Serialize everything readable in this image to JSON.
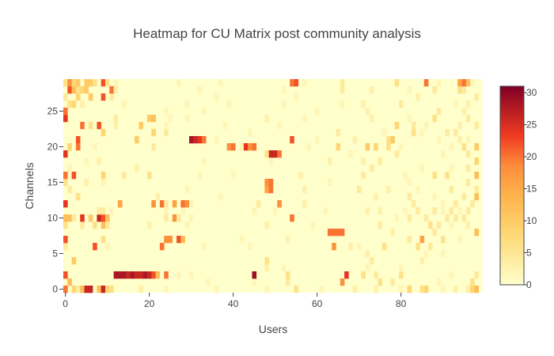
{
  "chart_data": {
    "type": "heatmap",
    "title": "Heatmap for CU Matrix post community analysis",
    "xlabel": "Users",
    "ylabel": "Channels",
    "x_range": [
      0,
      99
    ],
    "y_range": [
      0,
      29
    ],
    "x_ticks": [
      0,
      20,
      40,
      60,
      80
    ],
    "y_ticks": [
      0,
      5,
      10,
      15,
      20,
      25
    ],
    "colorscale": [
      [
        0,
        "#ffffcc"
      ],
      [
        0.25,
        "#fed976"
      ],
      [
        0.45,
        "#feb24c"
      ],
      [
        0.6,
        "#fd8d3c"
      ],
      [
        0.75,
        "#f03b20"
      ],
      [
        1,
        "#800026"
      ]
    ],
    "zmin": 0,
    "zmax": 31,
    "colorbar_ticks": [
      0,
      5,
      10,
      15,
      20,
      25,
      30
    ],
    "background_value": 0,
    "cells": [
      [
        0,
        0,
        20
      ],
      [
        2,
        0,
        8
      ],
      [
        3,
        0,
        4
      ],
      [
        4,
        0,
        12
      ],
      [
        5,
        0,
        26
      ],
      [
        6,
        0,
        26
      ],
      [
        8,
        0,
        12
      ],
      [
        9,
        0,
        26
      ],
      [
        10,
        0,
        8
      ],
      [
        11,
        0,
        6
      ],
      [
        18,
        0,
        3
      ],
      [
        24,
        0,
        2
      ],
      [
        36,
        0,
        2
      ],
      [
        48,
        0,
        2
      ],
      [
        55,
        0,
        6
      ],
      [
        61,
        0,
        2
      ],
      [
        69,
        0,
        3
      ],
      [
        74,
        0,
        3
      ],
      [
        80,
        0,
        2
      ],
      [
        82,
        0,
        8
      ],
      [
        85,
        0,
        6
      ],
      [
        86,
        0,
        8
      ],
      [
        90,
        0,
        2
      ],
      [
        93,
        0,
        3
      ],
      [
        96,
        0,
        3
      ],
      [
        97,
        0,
        8
      ],
      [
        98,
        0,
        12
      ],
      [
        1,
        1,
        12
      ],
      [
        34,
        1,
        2
      ],
      [
        45,
        1,
        2
      ],
      [
        53,
        1,
        4
      ],
      [
        66,
        1,
        18
      ],
      [
        75,
        1,
        6
      ],
      [
        78,
        1,
        4
      ],
      [
        89,
        1,
        2
      ],
      [
        97,
        1,
        6
      ],
      [
        0,
        2,
        22
      ],
      [
        12,
        2,
        28
      ],
      [
        13,
        2,
        28
      ],
      [
        14,
        2,
        28
      ],
      [
        15,
        2,
        26
      ],
      [
        16,
        2,
        28
      ],
      [
        17,
        2,
        26
      ],
      [
        18,
        2,
        26
      ],
      [
        19,
        2,
        28
      ],
      [
        20,
        2,
        26
      ],
      [
        21,
        2,
        22
      ],
      [
        22,
        2,
        12
      ],
      [
        24,
        2,
        20
      ],
      [
        27,
        2,
        2
      ],
      [
        30,
        2,
        2
      ],
      [
        45,
        2,
        29
      ],
      [
        53,
        2,
        6
      ],
      [
        67,
        2,
        24
      ],
      [
        71,
        2,
        6
      ],
      [
        74,
        2,
        4
      ],
      [
        80,
        2,
        6
      ],
      [
        92,
        2,
        2
      ],
      [
        98,
        2,
        4
      ],
      [
        48,
        3,
        3
      ],
      [
        52,
        3,
        2
      ],
      [
        72,
        3,
        2
      ],
      [
        80,
        3,
        2
      ],
      [
        2,
        4,
        10
      ],
      [
        48,
        4,
        6
      ],
      [
        73,
        4,
        4
      ],
      [
        85,
        4,
        3
      ],
      [
        72,
        5,
        3
      ],
      [
        86,
        5,
        2
      ],
      [
        90,
        5,
        2
      ],
      [
        0,
        6,
        4
      ],
      [
        7,
        6,
        22
      ],
      [
        10,
        6,
        2
      ],
      [
        23,
        6,
        20
      ],
      [
        33,
        6,
        2
      ],
      [
        44,
        6,
        2
      ],
      [
        64,
        6,
        18
      ],
      [
        68,
        6,
        3
      ],
      [
        70,
        6,
        2
      ],
      [
        76,
        6,
        6
      ],
      [
        84,
        6,
        6
      ],
      [
        87,
        6,
        4
      ],
      [
        0,
        7,
        22
      ],
      [
        9,
        7,
        6
      ],
      [
        24,
        7,
        18
      ],
      [
        25,
        7,
        18
      ],
      [
        27,
        7,
        22
      ],
      [
        28,
        7,
        12
      ],
      [
        42,
        7,
        2
      ],
      [
        53,
        7,
        3
      ],
      [
        82,
        7,
        4
      ],
      [
        85,
        7,
        16
      ],
      [
        90,
        7,
        6
      ],
      [
        94,
        7,
        2
      ],
      [
        63,
        8,
        20
      ],
      [
        64,
        8,
        20
      ],
      [
        65,
        8,
        20
      ],
      [
        66,
        8,
        20
      ],
      [
        78,
        8,
        3
      ],
      [
        88,
        8,
        4
      ],
      [
        98,
        8,
        12
      ],
      [
        0,
        9,
        6
      ],
      [
        4,
        9,
        4
      ],
      [
        7,
        9,
        6
      ],
      [
        9,
        9,
        12
      ],
      [
        10,
        9,
        4
      ],
      [
        20,
        9,
        3
      ],
      [
        29,
        9,
        2
      ],
      [
        48,
        9,
        3
      ],
      [
        59,
        9,
        2
      ],
      [
        75,
        9,
        4
      ],
      [
        87,
        9,
        6
      ],
      [
        89,
        9,
        4
      ],
      [
        92,
        9,
        2
      ],
      [
        96,
        9,
        3
      ],
      [
        0,
        10,
        12
      ],
      [
        1,
        10,
        12
      ],
      [
        2,
        10,
        4
      ],
      [
        4,
        10,
        24
      ],
      [
        6,
        10,
        10
      ],
      [
        8,
        10,
        26
      ],
      [
        9,
        10,
        22
      ],
      [
        10,
        10,
        12
      ],
      [
        24,
        10,
        4
      ],
      [
        26,
        10,
        18
      ],
      [
        27,
        10,
        4
      ],
      [
        30,
        10,
        2
      ],
      [
        54,
        10,
        20
      ],
      [
        79,
        10,
        2
      ],
      [
        82,
        10,
        4
      ],
      [
        86,
        10,
        4
      ],
      [
        91,
        10,
        4
      ],
      [
        93,
        10,
        4
      ],
      [
        95,
        10,
        4
      ],
      [
        8,
        11,
        4
      ],
      [
        9,
        11,
        4
      ],
      [
        11,
        11,
        2
      ],
      [
        24,
        11,
        2
      ],
      [
        28,
        11,
        2
      ],
      [
        45,
        11,
        2
      ],
      [
        50,
        11,
        2
      ],
      [
        62,
        11,
        2
      ],
      [
        72,
        11,
        3
      ],
      [
        75,
        11,
        3
      ],
      [
        81,
        11,
        2
      ],
      [
        84,
        11,
        4
      ],
      [
        88,
        11,
        4
      ],
      [
        90,
        11,
        2
      ],
      [
        92,
        11,
        4
      ],
      [
        94,
        11,
        2
      ],
      [
        96,
        11,
        4
      ],
      [
        0,
        12,
        24
      ],
      [
        13,
        12,
        16
      ],
      [
        21,
        12,
        18
      ],
      [
        23,
        12,
        20
      ],
      [
        24,
        12,
        4
      ],
      [
        26,
        12,
        16
      ],
      [
        28,
        12,
        20
      ],
      [
        29,
        12,
        18
      ],
      [
        30,
        12,
        2
      ],
      [
        46,
        12,
        4
      ],
      [
        51,
        12,
        18
      ],
      [
        57,
        12,
        3
      ],
      [
        83,
        12,
        4
      ],
      [
        90,
        12,
        2
      ],
      [
        93,
        12,
        4
      ],
      [
        97,
        12,
        4
      ],
      [
        3,
        13,
        6
      ],
      [
        22,
        13,
        3
      ],
      [
        37,
        13,
        2
      ],
      [
        74,
        13,
        3
      ],
      [
        82,
        13,
        4
      ],
      [
        88,
        13,
        2
      ],
      [
        95,
        13,
        4
      ],
      [
        98,
        13,
        12
      ],
      [
        1,
        14,
        4
      ],
      [
        29,
        14,
        2
      ],
      [
        48,
        14,
        16
      ],
      [
        49,
        14,
        20
      ],
      [
        57,
        14,
        3
      ],
      [
        70,
        14,
        4
      ],
      [
        77,
        14,
        3
      ],
      [
        84,
        14,
        2
      ],
      [
        92,
        14,
        4
      ],
      [
        98,
        14,
        4
      ],
      [
        0,
        15,
        6
      ],
      [
        5,
        15,
        3
      ],
      [
        9,
        15,
        2
      ],
      [
        48,
        15,
        18
      ],
      [
        49,
        15,
        20
      ],
      [
        63,
        15,
        2
      ],
      [
        82,
        15,
        2
      ],
      [
        96,
        15,
        4
      ],
      [
        0,
        16,
        20
      ],
      [
        2,
        16,
        22
      ],
      [
        9,
        16,
        8
      ],
      [
        14,
        16,
        4
      ],
      [
        20,
        16,
        6
      ],
      [
        32,
        16,
        2
      ],
      [
        40,
        16,
        2
      ],
      [
        56,
        16,
        3
      ],
      [
        71,
        16,
        4
      ],
      [
        81,
        16,
        2
      ],
      [
        88,
        16,
        6
      ],
      [
        91,
        16,
        6
      ],
      [
        98,
        16,
        12
      ],
      [
        1,
        17,
        2
      ],
      [
        17,
        17,
        3
      ],
      [
        73,
        17,
        4
      ],
      [
        85,
        17,
        2
      ],
      [
        92,
        17,
        2
      ],
      [
        96,
        17,
        4
      ],
      [
        5,
        18,
        2
      ],
      [
        8,
        18,
        3
      ],
      [
        33,
        18,
        2
      ],
      [
        49,
        18,
        2
      ],
      [
        63,
        18,
        3
      ],
      [
        71,
        18,
        3
      ],
      [
        75,
        18,
        4
      ],
      [
        98,
        18,
        8
      ],
      [
        0,
        19,
        24
      ],
      [
        48,
        19,
        6
      ],
      [
        49,
        19,
        26
      ],
      [
        50,
        19,
        26
      ],
      [
        51,
        19,
        20
      ],
      [
        68,
        19,
        2
      ],
      [
        79,
        19,
        4
      ],
      [
        90,
        19,
        2
      ],
      [
        96,
        19,
        4
      ],
      [
        1,
        20,
        8
      ],
      [
        3,
        20,
        20
      ],
      [
        7,
        20,
        2
      ],
      [
        21,
        20,
        4
      ],
      [
        39,
        20,
        18
      ],
      [
        40,
        20,
        20
      ],
      [
        42,
        20,
        2
      ],
      [
        43,
        20,
        24
      ],
      [
        44,
        20,
        18
      ],
      [
        45,
        20,
        20
      ],
      [
        58,
        20,
        2
      ],
      [
        65,
        20,
        8
      ],
      [
        72,
        20,
        10
      ],
      [
        74,
        20,
        8
      ],
      [
        77,
        20,
        6
      ],
      [
        80,
        20,
        2
      ],
      [
        92,
        20,
        2
      ],
      [
        95,
        20,
        6
      ],
      [
        98,
        20,
        10
      ],
      [
        3,
        21,
        22
      ],
      [
        17,
        21,
        10
      ],
      [
        30,
        21,
        28
      ],
      [
        31,
        21,
        26
      ],
      [
        32,
        21,
        24
      ],
      [
        33,
        21,
        20
      ],
      [
        36,
        21,
        2
      ],
      [
        54,
        21,
        22
      ],
      [
        60,
        21,
        2
      ],
      [
        69,
        21,
        3
      ],
      [
        77,
        21,
        6
      ],
      [
        78,
        21,
        10
      ],
      [
        89,
        21,
        2
      ],
      [
        94,
        21,
        3
      ],
      [
        96,
        21,
        2
      ],
      [
        9,
        22,
        8
      ],
      [
        21,
        22,
        8
      ],
      [
        24,
        22,
        4
      ],
      [
        44,
        22,
        2
      ],
      [
        65,
        22,
        4
      ],
      [
        76,
        22,
        2
      ],
      [
        83,
        22,
        6
      ],
      [
        85,
        22,
        2
      ],
      [
        91,
        22,
        4
      ],
      [
        93,
        22,
        4
      ],
      [
        4,
        23,
        20
      ],
      [
        6,
        23,
        6
      ],
      [
        8,
        23,
        22
      ],
      [
        12,
        23,
        3
      ],
      [
        18,
        23,
        10
      ],
      [
        24,
        23,
        2
      ],
      [
        38,
        23,
        2
      ],
      [
        51,
        23,
        2
      ],
      [
        79,
        23,
        8
      ],
      [
        83,
        23,
        4
      ],
      [
        86,
        23,
        2
      ],
      [
        94,
        23,
        3
      ],
      [
        98,
        23,
        4
      ],
      [
        0,
        24,
        24
      ],
      [
        12,
        24,
        4
      ],
      [
        20,
        24,
        10
      ],
      [
        21,
        24,
        12
      ],
      [
        25,
        24,
        2
      ],
      [
        29,
        24,
        2
      ],
      [
        48,
        24,
        3
      ],
      [
        57,
        24,
        2
      ],
      [
        73,
        24,
        3
      ],
      [
        82,
        24,
        2
      ],
      [
        88,
        24,
        6
      ],
      [
        96,
        24,
        4
      ],
      [
        0,
        25,
        20
      ],
      [
        24,
        25,
        2
      ],
      [
        33,
        25,
        2
      ],
      [
        60,
        25,
        2
      ],
      [
        72,
        25,
        3
      ],
      [
        89,
        25,
        4
      ],
      [
        95,
        25,
        3
      ],
      [
        1,
        26,
        6
      ],
      [
        2,
        26,
        8
      ],
      [
        4,
        26,
        3
      ],
      [
        14,
        26,
        2
      ],
      [
        29,
        26,
        2
      ],
      [
        39,
        26,
        2
      ],
      [
        52,
        26,
        2
      ],
      [
        66,
        26,
        2
      ],
      [
        71,
        26,
        3
      ],
      [
        80,
        26,
        4
      ],
      [
        93,
        26,
        2
      ],
      [
        96,
        26,
        3
      ],
      [
        0,
        27,
        4
      ],
      [
        3,
        27,
        8
      ],
      [
        6,
        27,
        10
      ],
      [
        9,
        27,
        22
      ],
      [
        11,
        27,
        4
      ],
      [
        36,
        27,
        2
      ],
      [
        55,
        27,
        2
      ],
      [
        84,
        27,
        3
      ],
      [
        98,
        27,
        4
      ],
      [
        1,
        28,
        22
      ],
      [
        2,
        28,
        12
      ],
      [
        3,
        28,
        6
      ],
      [
        4,
        28,
        8
      ],
      [
        5,
        28,
        10
      ],
      [
        11,
        28,
        20
      ],
      [
        12,
        28,
        3
      ],
      [
        32,
        28,
        2
      ],
      [
        52,
        28,
        2
      ],
      [
        66,
        28,
        4
      ],
      [
        73,
        28,
        3
      ],
      [
        82,
        28,
        2
      ],
      [
        88,
        28,
        4
      ],
      [
        94,
        28,
        6
      ],
      [
        95,
        28,
        4
      ],
      [
        0,
        29,
        6
      ],
      [
        1,
        29,
        18
      ],
      [
        2,
        29,
        8
      ],
      [
        3,
        29,
        10
      ],
      [
        5,
        29,
        10
      ],
      [
        6,
        29,
        10
      ],
      [
        7,
        29,
        6
      ],
      [
        9,
        29,
        22
      ],
      [
        10,
        29,
        6
      ],
      [
        12,
        29,
        2
      ],
      [
        27,
        29,
        2
      ],
      [
        37,
        29,
        2
      ],
      [
        54,
        29,
        20
      ],
      [
        55,
        29,
        22
      ],
      [
        57,
        29,
        2
      ],
      [
        66,
        29,
        4
      ],
      [
        79,
        29,
        6
      ],
      [
        86,
        29,
        20
      ],
      [
        89,
        29,
        2
      ],
      [
        94,
        29,
        16
      ],
      [
        95,
        29,
        20
      ],
      [
        96,
        29,
        12
      ],
      [
        97,
        29,
        2
      ]
    ]
  }
}
